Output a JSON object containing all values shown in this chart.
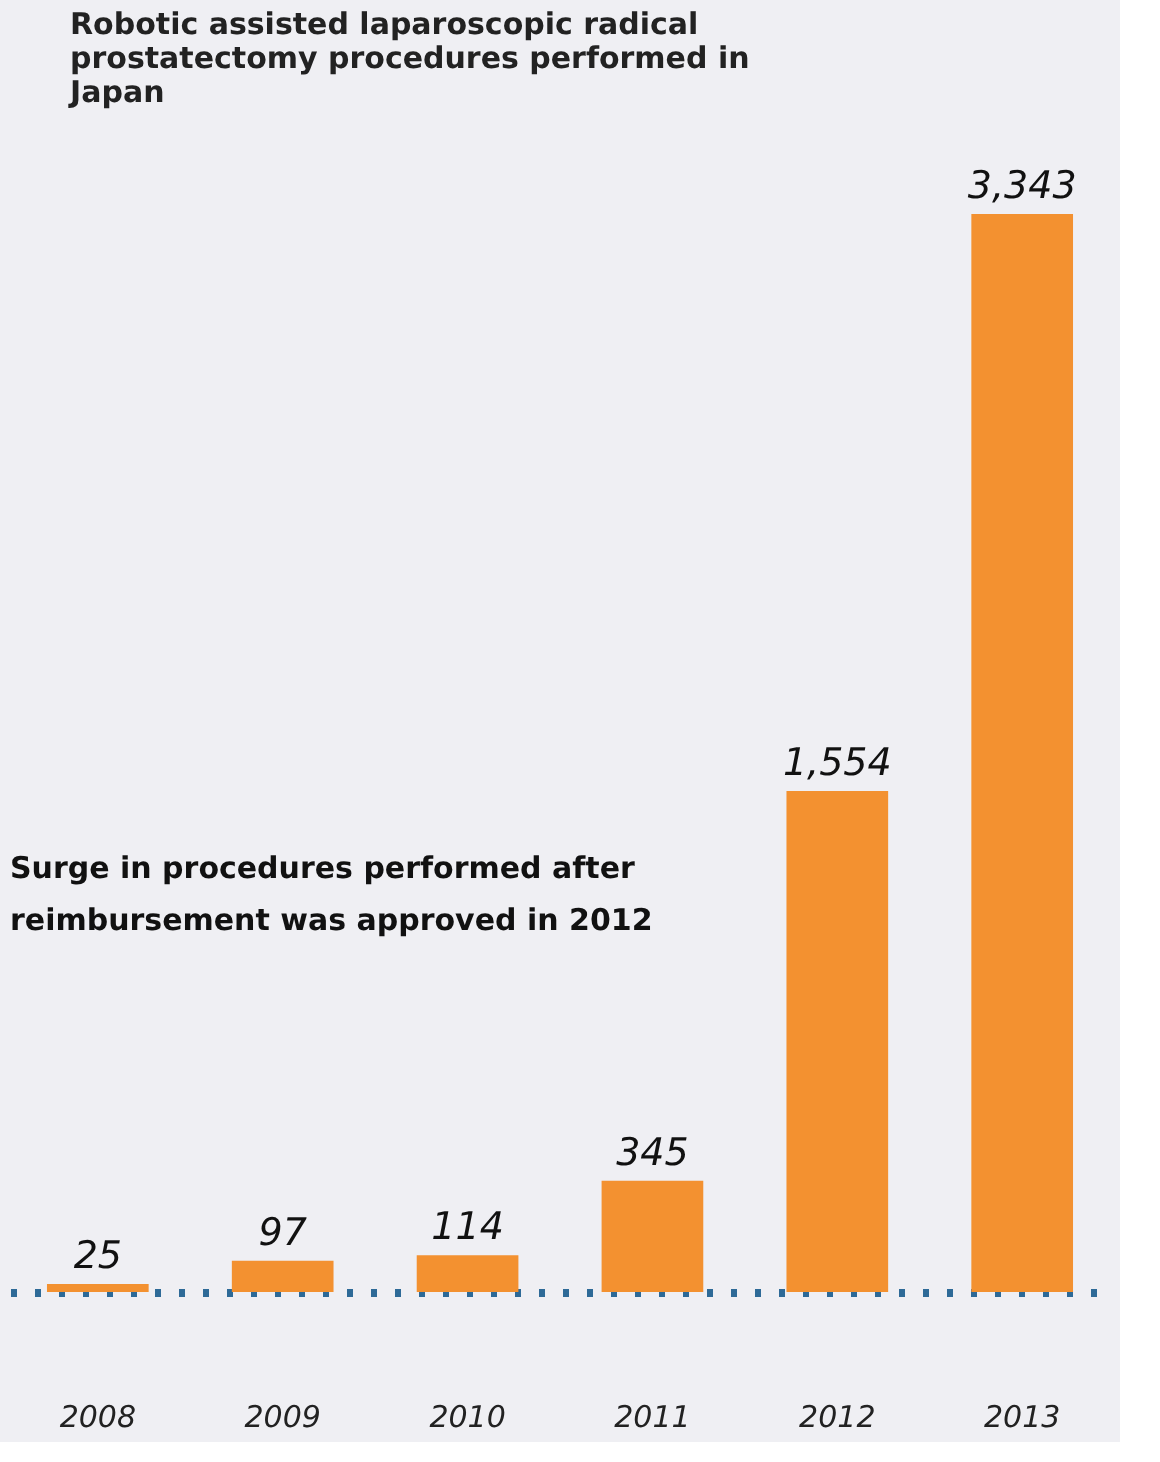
{
  "chart_data": {
    "type": "bar",
    "title": "Robotic assisted laparoscopic radical prostatectomy procedures performed in Japan",
    "categories": [
      "2008",
      "2009",
      "2010",
      "2011",
      "2012",
      "2013"
    ],
    "values": [
      25,
      97,
      114,
      345,
      1554,
      3343
    ],
    "value_labels": [
      "25",
      "97",
      "114",
      "345",
      "1,554",
      "3,343"
    ],
    "color": "#f39130",
    "annotations": [
      "Surge in procedures performed after reimbursement was approved in 2012"
    ]
  }
}
